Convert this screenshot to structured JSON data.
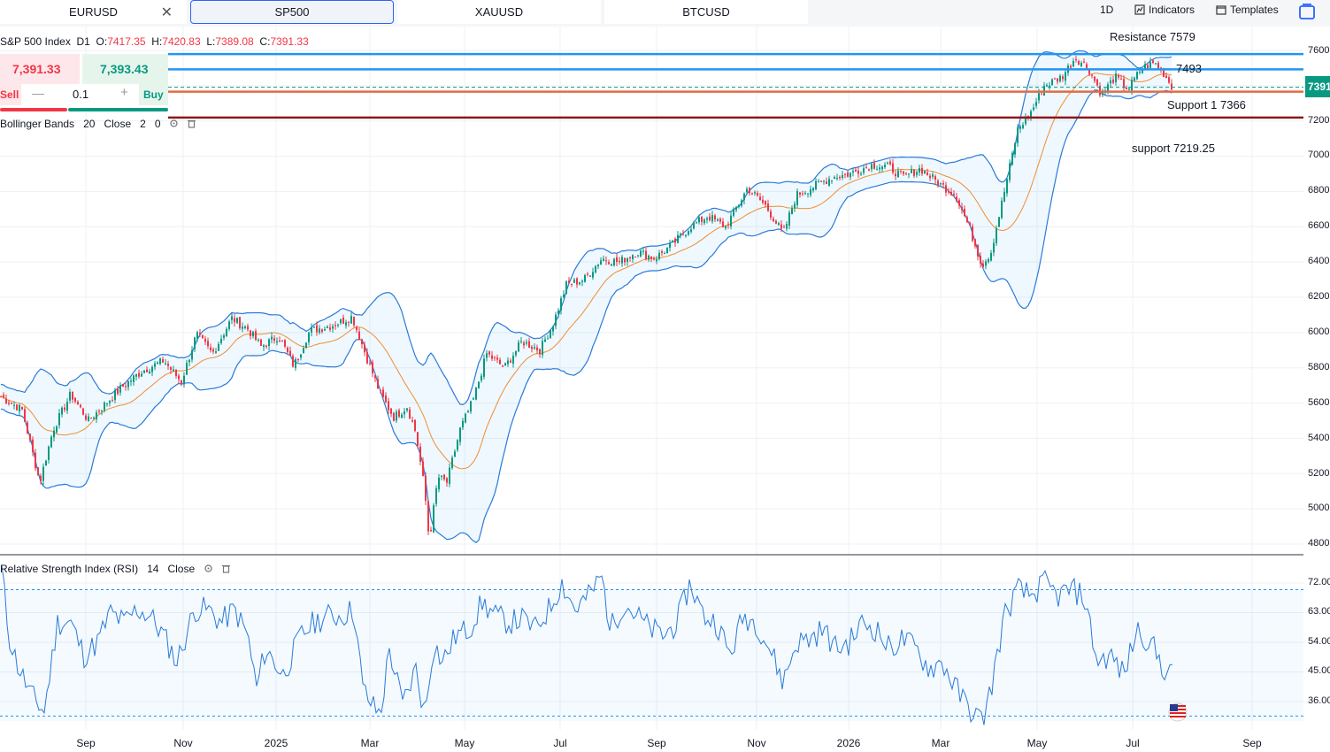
{
  "tabs": [
    {
      "label": "EURUSD",
      "closable": true
    },
    {
      "label": "SP500",
      "active": true
    },
    {
      "label": "XAUUSD"
    },
    {
      "label": "BTCUSD"
    }
  ],
  "toolbar": {
    "interval": "1D",
    "indicators_label": "Indicators",
    "templates_label": "Templates"
  },
  "legend": {
    "symbol": "S&P 500 Index",
    "timeframe": "D1",
    "o_label": "O:",
    "o_value": "7417.35",
    "h_label": "H:",
    "h_value": "7420.83",
    "l_label": "L:",
    "l_value": "7389.08",
    "c_label": "C:",
    "c_value": "7391.33"
  },
  "trade": {
    "sell_price": "7,391.33",
    "buy_price": "7,393.43",
    "sell_label": "Sell",
    "buy_label": "Buy",
    "quantity": "0.1"
  },
  "bollinger": {
    "name": "Bollinger Bands",
    "period": "20",
    "source": "Close",
    "mult": "2",
    "offset": "0"
  },
  "rsi": {
    "name": "Relative Strength Index (RSI)",
    "period": "14",
    "source": "Close"
  },
  "annotations": {
    "resistance": "Resistance 7579",
    "level_7493": "7493",
    "support1": "Support 1 7366",
    "support2": "support 7219.25"
  },
  "last_price_tag": "7391",
  "colors": {
    "up": "#089981",
    "down": "#f23645",
    "band": "#2a7ad8",
    "basis": "#f28c30",
    "line_blue": "#2196f3",
    "line_orange": "#e06c45",
    "line_dark": "#8b1a1a"
  },
  "chart_data": {
    "type": "line",
    "symbol": "S&P 500 Index",
    "x_ticks": [
      "Sep",
      "Nov",
      "2025",
      "Mar",
      "May",
      "Jul",
      "Sep",
      "Nov",
      "2026",
      "Mar",
      "May",
      "Jul",
      "Sep"
    ],
    "price_ticks": [
      "7600",
      "7400",
      "7200",
      "7000",
      "6800",
      "6600",
      "6400",
      "6200",
      "6000",
      "5800",
      "5600",
      "5400",
      "5200",
      "5000",
      "4800"
    ],
    "price_ylim": [
      4760,
      7680
    ],
    "rsi_ticks": [
      "72.00",
      "63.00",
      "54.00",
      "45.00",
      "36.00"
    ],
    "rsi_ylim": [
      28,
      77
    ],
    "rsi_bands": [
      70,
      30
    ],
    "horizontal_levels": [
      {
        "name": "Resistance",
        "value": 7579,
        "color": "#2196f3"
      },
      {
        "name": "7493",
        "value": 7493,
        "color": "#2196f3"
      },
      {
        "name": "Support 1",
        "value": 7366,
        "color": "#e06c45"
      },
      {
        "name": "support",
        "value": 7219.25,
        "color": "#8b1a1a"
      },
      {
        "name": "last",
        "value": 7391.33,
        "color": "#089981",
        "dashed": true
      }
    ],
    "price_path": [
      [
        0,
        5640
      ],
      [
        25,
        5560
      ],
      [
        45,
        5150
      ],
      [
        60,
        5450
      ],
      [
        80,
        5650
      ],
      [
        100,
        5500
      ],
      [
        120,
        5600
      ],
      [
        140,
        5700
      ],
      [
        160,
        5780
      ],
      [
        185,
        5840
      ],
      [
        205,
        5720
      ],
      [
        222,
        5990
      ],
      [
        240,
        5880
      ],
      [
        262,
        6080
      ],
      [
        280,
        6020
      ],
      [
        295,
        5920
      ],
      [
        315,
        5980
      ],
      [
        332,
        5810
      ],
      [
        350,
        6010
      ],
      [
        375,
        6040
      ],
      [
        398,
        6090
      ],
      [
        415,
        5850
      ],
      [
        430,
        5650
      ],
      [
        445,
        5520
      ],
      [
        460,
        5580
      ],
      [
        470,
        5430
      ],
      [
        480,
        5100
      ],
      [
        485,
        4820
      ],
      [
        495,
        5180
      ],
      [
        505,
        5150
      ],
      [
        520,
        5450
      ],
      [
        535,
        5620
      ],
      [
        550,
        5880
      ],
      [
        570,
        5800
      ],
      [
        590,
        5950
      ],
      [
        610,
        5900
      ],
      [
        625,
        6050
      ],
      [
        640,
        6270
      ],
      [
        660,
        6300
      ],
      [
        680,
        6420
      ],
      [
        700,
        6400
      ],
      [
        720,
        6460
      ],
      [
        740,
        6420
      ],
      [
        760,
        6500
      ],
      [
        780,
        6600
      ],
      [
        800,
        6660
      ],
      [
        820,
        6600
      ],
      [
        845,
        6820
      ],
      [
        865,
        6720
      ],
      [
        885,
        6560
      ],
      [
        900,
        6780
      ],
      [
        920,
        6830
      ],
      [
        940,
        6880
      ],
      [
        960,
        6900
      ],
      [
        985,
        6950
      ],
      [
        1005,
        6940
      ],
      [
        1020,
        6880
      ],
      [
        1040,
        6930
      ],
      [
        1060,
        6850
      ],
      [
        1080,
        6780
      ],
      [
        1095,
        6600
      ],
      [
        1110,
        6380
      ],
      [
        1120,
        6460
      ],
      [
        1135,
        6800
      ],
      [
        1150,
        7150
      ],
      [
        1165,
        7250
      ],
      [
        1180,
        7400
      ],
      [
        1200,
        7450
      ],
      [
        1215,
        7560
      ],
      [
        1230,
        7500
      ],
      [
        1245,
        7350
      ],
      [
        1260,
        7450
      ],
      [
        1275,
        7380
      ],
      [
        1290,
        7500
      ],
      [
        1305,
        7530
      ],
      [
        1315,
        7470
      ],
      [
        1325,
        7391
      ]
    ],
    "rsi_path": [
      [
        2,
        76
      ],
      [
        10,
        56
      ],
      [
        20,
        47
      ],
      [
        35,
        38
      ],
      [
        50,
        33
      ],
      [
        65,
        60
      ],
      [
        80,
        60
      ],
      [
        95,
        50
      ],
      [
        110,
        54
      ],
      [
        125,
        63
      ],
      [
        140,
        60
      ],
      [
        155,
        64
      ],
      [
        170,
        62
      ],
      [
        185,
        56
      ],
      [
        200,
        48
      ],
      [
        220,
        64
      ],
      [
        235,
        64
      ],
      [
        250,
        60
      ],
      [
        265,
        64
      ],
      [
        280,
        56
      ],
      [
        290,
        40
      ],
      [
        300,
        52
      ],
      [
        320,
        44
      ],
      [
        340,
        56
      ],
      [
        355,
        60
      ],
      [
        370,
        62
      ],
      [
        385,
        62
      ],
      [
        400,
        64
      ],
      [
        410,
        40
      ],
      [
        420,
        35
      ],
      [
        430,
        32
      ],
      [
        440,
        52
      ],
      [
        455,
        35
      ],
      [
        470,
        46
      ],
      [
        480,
        32
      ],
      [
        490,
        54
      ],
      [
        500,
        48
      ],
      [
        515,
        56
      ],
      [
        530,
        58
      ],
      [
        545,
        66
      ],
      [
        560,
        62
      ],
      [
        575,
        60
      ],
      [
        590,
        61
      ],
      [
        605,
        58
      ],
      [
        620,
        64
      ],
      [
        635,
        72
      ],
      [
        650,
        64
      ],
      [
        665,
        68
      ],
      [
        680,
        74
      ],
      [
        690,
        58
      ],
      [
        705,
        66
      ],
      [
        720,
        62
      ],
      [
        735,
        58
      ],
      [
        750,
        56
      ],
      [
        765,
        60
      ],
      [
        780,
        72
      ],
      [
        795,
        62
      ],
      [
        810,
        60
      ],
      [
        825,
        50
      ],
      [
        840,
        62
      ],
      [
        855,
        60
      ],
      [
        870,
        52
      ],
      [
        885,
        42
      ],
      [
        900,
        54
      ],
      [
        915,
        55
      ],
      [
        930,
        58
      ],
      [
        945,
        52
      ],
      [
        960,
        54
      ],
      [
        975,
        60
      ],
      [
        990,
        58
      ],
      [
        1005,
        52
      ],
      [
        1020,
        55
      ],
      [
        1035,
        52
      ],
      [
        1050,
        46
      ],
      [
        1065,
        48
      ],
      [
        1080,
        40
      ],
      [
        1095,
        34
      ],
      [
        1110,
        30
      ],
      [
        1120,
        40
      ],
      [
        1135,
        62
      ],
      [
        1150,
        70
      ],
      [
        1165,
        68
      ],
      [
        1180,
        72
      ],
      [
        1195,
        68
      ],
      [
        1210,
        70
      ],
      [
        1225,
        68
      ],
      [
        1240,
        48
      ],
      [
        1255,
        50
      ],
      [
        1270,
        44
      ],
      [
        1285,
        58
      ],
      [
        1300,
        54
      ],
      [
        1315,
        46
      ],
      [
        1325,
        44
      ]
    ]
  }
}
